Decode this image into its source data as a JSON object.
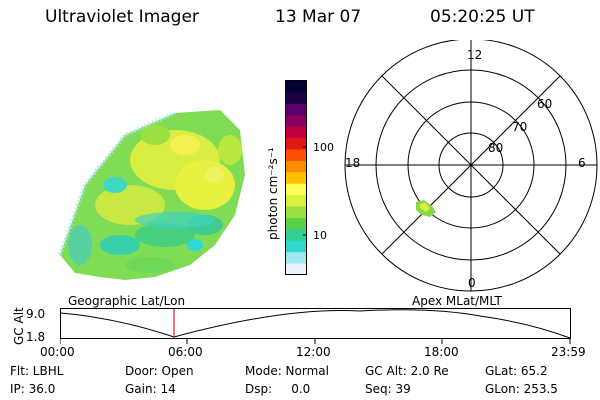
{
  "header": {
    "title": "Ultraviolet Imager",
    "date": "13 Mar 07",
    "time": "05:20:25 UT"
  },
  "colorbar": {
    "unit_label": "photon cm⁻²s⁻¹",
    "ticks": [
      "100",
      "10"
    ],
    "colors_top_to_bottom": [
      "#000033",
      "#1a0040",
      "#5a0070",
      "#8a0060",
      "#c00040",
      "#e01818",
      "#f85000",
      "#ff8a00",
      "#ffc000",
      "#ffff55",
      "#d8f040",
      "#9ae040",
      "#58d048",
      "#30d090",
      "#30d8d0",
      "#a0e8f0",
      "#e8f4f8"
    ]
  },
  "image_panel": {
    "label": "Geographic Lat/Lon"
  },
  "polar_panel": {
    "label": "Apex MLat/MLT",
    "mlt_labels": {
      "top": "12",
      "left": "18",
      "right": "6",
      "bottom": "0"
    },
    "lat_labels": [
      "60",
      "70",
      "80"
    ]
  },
  "orbit_panel": {
    "axis_label": "GC Alt",
    "ytick_top": "9.0",
    "ytick_bottom": "1.8",
    "xticks": [
      "00:00",
      "06:00",
      "12:00",
      "18:00",
      "23:59"
    ]
  },
  "footer": {
    "row1": {
      "flt": "Flt: LBHL",
      "door": "Door: Open",
      "mode": "Mode: Normal",
      "gcalt": "GC Alt: 2.0 Re",
      "glat": "GLat:  65.2"
    },
    "row2": {
      "ip": "IP: 36.0",
      "gain": "Gain: 14",
      "dsp": "Dsp:     0.0",
      "seq": "Seq: 39",
      "glon": "GLon: 253.5"
    }
  }
}
